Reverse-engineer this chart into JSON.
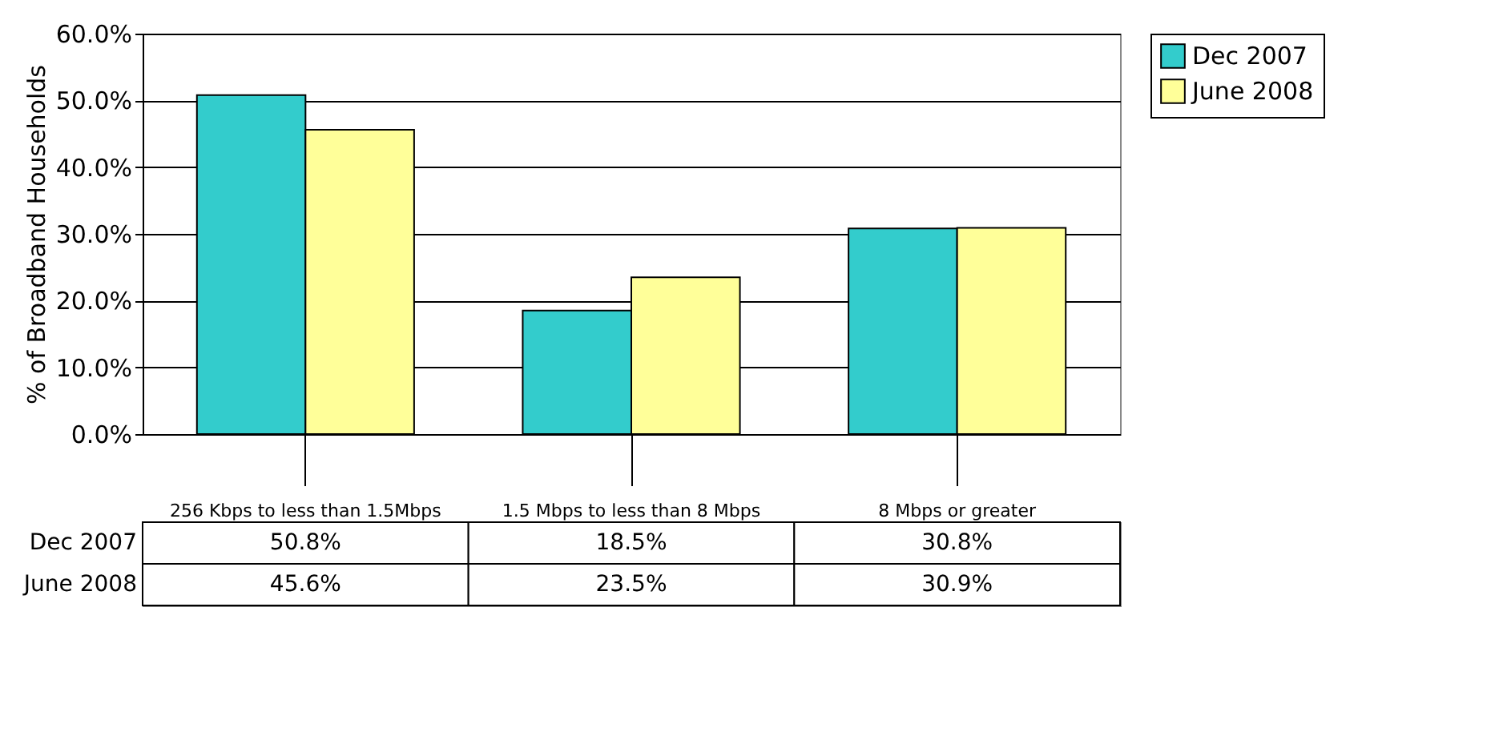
{
  "chart_data": {
    "type": "bar",
    "ylabel": "% of Broadband Households",
    "categories": [
      "256 Kbps to less than 1.5Mbps",
      "1.5 Mbps to less than 8 Mbps",
      "8 Mbps or greater"
    ],
    "series": [
      {
        "name": "Dec 2007",
        "color": "#33cccc",
        "values": [
          50.8,
          18.5,
          30.8
        ],
        "value_labels": [
          "50.8%",
          "18.5%",
          "30.8%"
        ]
      },
      {
        "name": "June 2008",
        "color": "#ffff99",
        "values": [
          45.6,
          23.5,
          30.9
        ],
        "value_labels": [
          "45.6%",
          "23.5%",
          "30.9%"
        ]
      }
    ],
    "ylim": [
      0,
      60
    ],
    "yticks": [
      {
        "value": 0,
        "label": "0.0%"
      },
      {
        "value": 10,
        "label": "10.0%"
      },
      {
        "value": 20,
        "label": "20.0%"
      },
      {
        "value": 30,
        "label": "30.0%"
      },
      {
        "value": 40,
        "label": "40.0%"
      },
      {
        "value": 50,
        "label": "50.0%"
      },
      {
        "value": 60,
        "label": "60.0%"
      }
    ],
    "grid": "y",
    "legend": "right"
  }
}
